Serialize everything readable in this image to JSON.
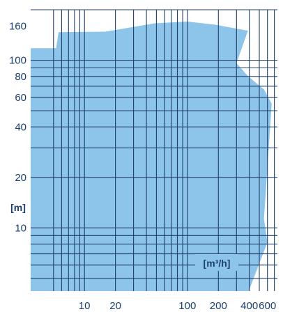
{
  "chart_data": {
    "type": "area",
    "title": "",
    "xlabel": "[m³/h]",
    "ylabel": "[m]",
    "x_scale": "log",
    "y_scale": "log",
    "xlim": [
      3,
      750
    ],
    "ylim": [
      4.2,
      200
    ],
    "x_ticks": [
      10,
      20,
      100,
      200,
      400,
      600
    ],
    "y_ticks": [
      10,
      20,
      40,
      60,
      80,
      100,
      160
    ],
    "x_tick_labels": [
      "10",
      "20",
      "100",
      "200",
      "400",
      "600"
    ],
    "y_tick_labels": [
      "10",
      "20",
      "40",
      "60",
      "80",
      "100",
      "160"
    ],
    "x_gridlines": [
      5,
      6,
      7,
      8,
      9,
      10,
      20,
      30,
      40,
      50,
      60,
      70,
      80,
      90,
      100,
      200,
      300,
      400,
      500,
      600,
      700
    ],
    "y_gridlines": [
      5,
      6,
      7,
      8,
      9,
      10,
      20,
      30,
      40,
      50,
      60,
      70,
      80,
      90,
      100,
      200
    ],
    "grid": true,
    "series": [
      {
        "values": [
          [
            3,
            118
          ],
          [
            5.3,
            118
          ],
          [
            5.6,
            147
          ],
          [
            16,
            148
          ],
          [
            48,
            166
          ],
          [
            100,
            170
          ],
          [
            185,
            163
          ],
          [
            388,
            150
          ],
          [
            300,
            96
          ],
          [
            390,
            80
          ],
          [
            555,
            67
          ],
          [
            660,
            55
          ],
          [
            555,
            11.3
          ],
          [
            600,
            8.2
          ],
          [
            395,
            4.2
          ],
          [
            3,
            4.2
          ]
        ]
      }
    ],
    "colors": {
      "fill": "#8dc4ea",
      "grid": "#1e3f6b",
      "text": "#1a3f70"
    }
  }
}
